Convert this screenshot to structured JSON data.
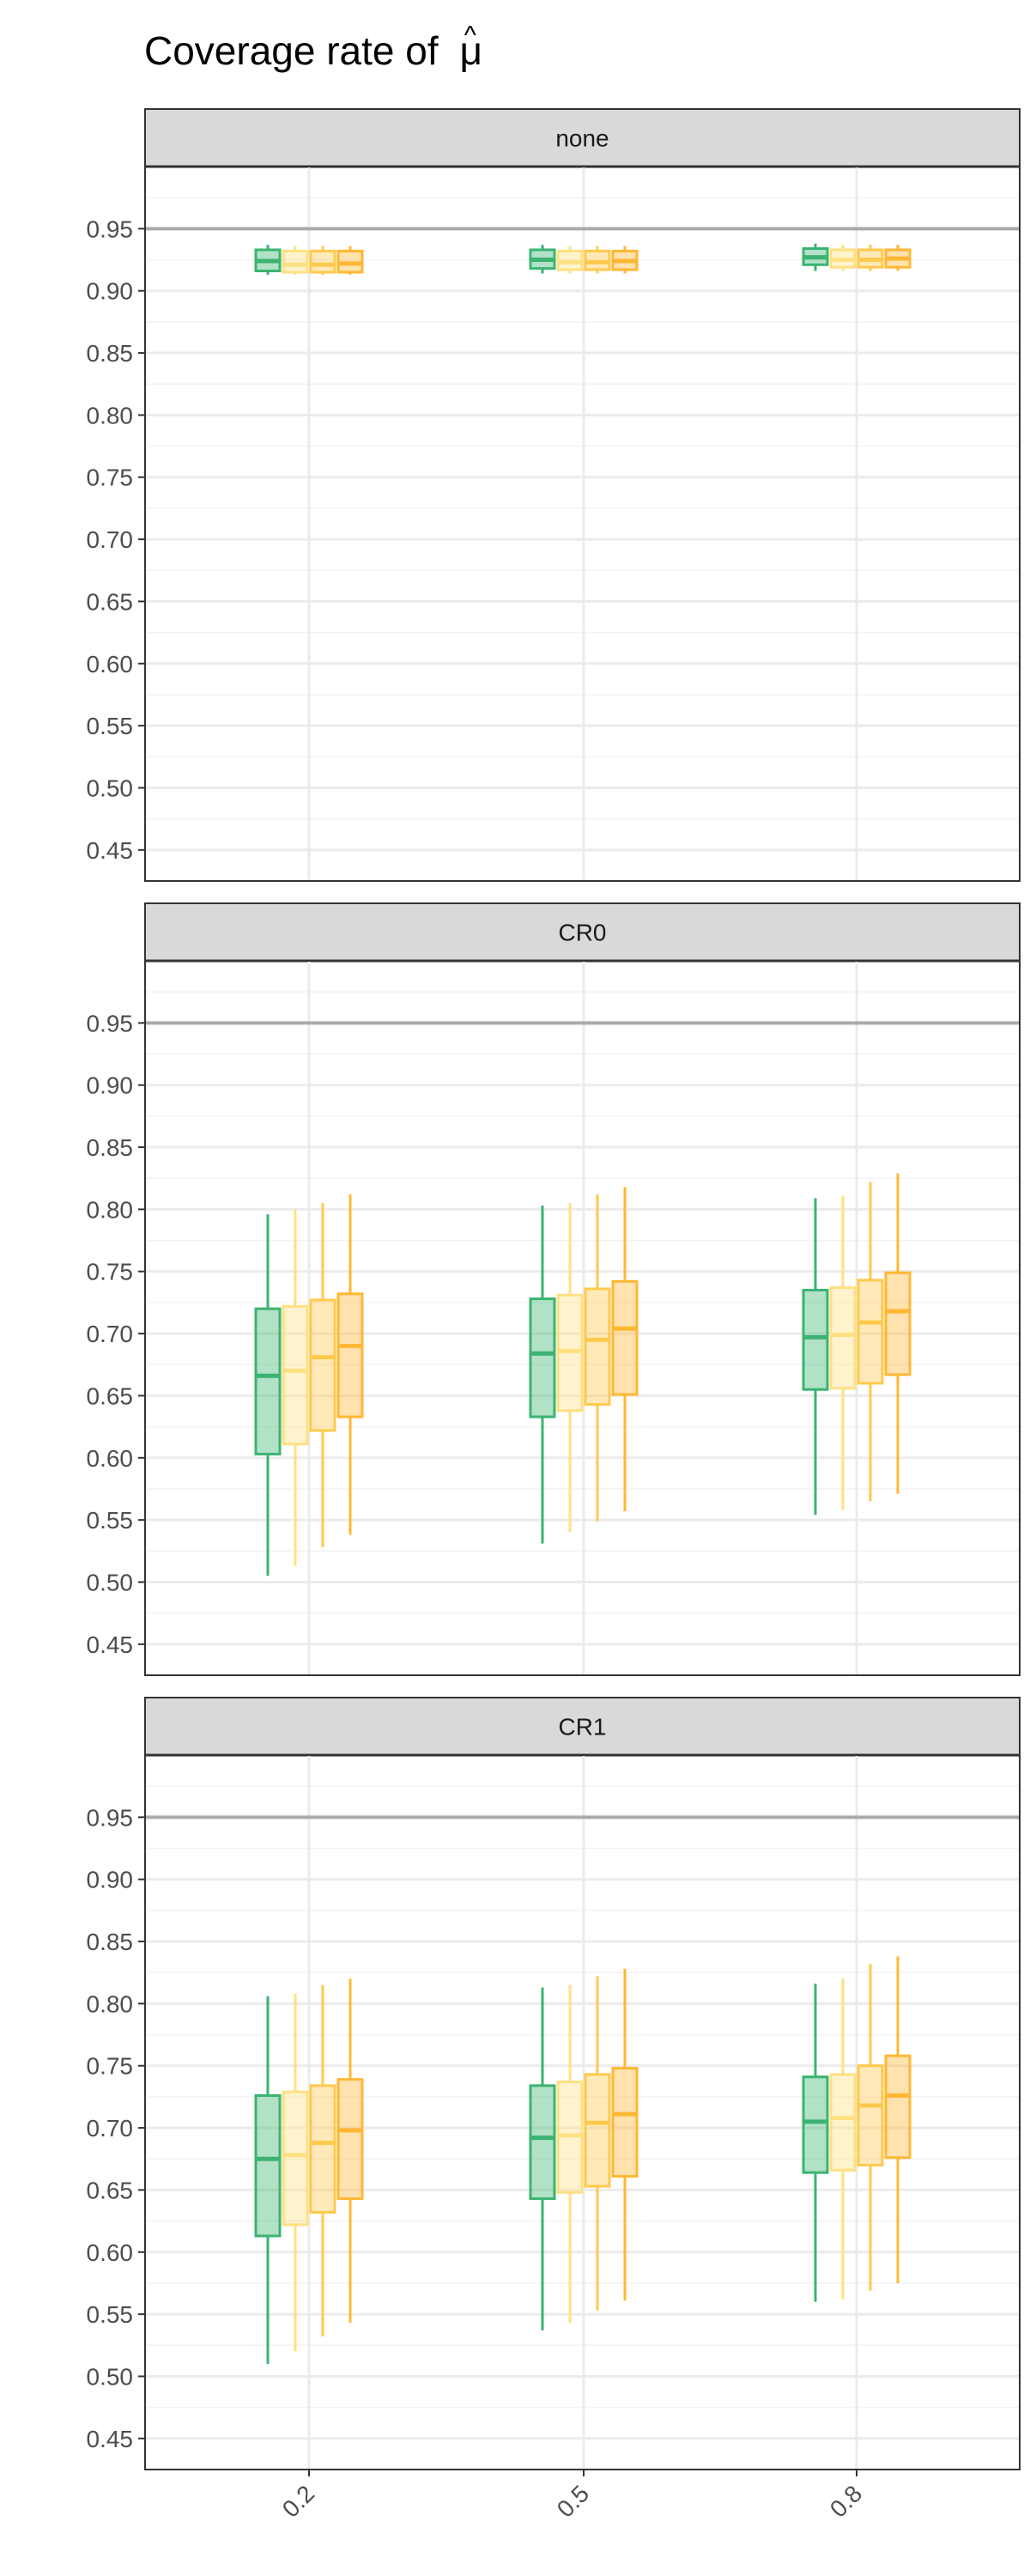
{
  "title": "Coverage rate of μ̂",
  "title_prefix": "Coverage rate of",
  "title_symbol": "μ",
  "colors": {
    "series": [
      "#3cb371",
      "#ffe082",
      "#ffc94d",
      "#ffb733"
    ],
    "reference_line": "#aaaaaa",
    "strip_fill": "#d9d9d9",
    "grid": "#ebebeb"
  },
  "chart_data": {
    "type": "box",
    "x_categories": [
      "0.2",
      "0.5",
      "0.8"
    ],
    "ylim": [
      0.425,
      1.0
    ],
    "y_ticks": [
      "0.45",
      "0.50",
      "0.55",
      "0.60",
      "0.65",
      "0.70",
      "0.75",
      "0.80",
      "0.85",
      "0.90",
      "0.95"
    ],
    "reference_line": 0.95,
    "grid": true,
    "legend": "none",
    "panels": [
      {
        "label": "none",
        "boxes": [
          [
            {
              "min": 0.913,
              "q1": 0.916,
              "median": 0.924,
              "q3": 0.933,
              "max": 0.937
            },
            {
              "min": 0.913,
              "q1": 0.915,
              "median": 0.921,
              "q3": 0.932,
              "max": 0.936
            },
            {
              "min": 0.913,
              "q1": 0.915,
              "median": 0.921,
              "q3": 0.932,
              "max": 0.936
            },
            {
              "min": 0.913,
              "q1": 0.915,
              "median": 0.922,
              "q3": 0.932,
              "max": 0.936
            }
          ],
          [
            {
              "min": 0.914,
              "q1": 0.918,
              "median": 0.925,
              "q3": 0.933,
              "max": 0.937
            },
            {
              "min": 0.914,
              "q1": 0.917,
              "median": 0.923,
              "q3": 0.932,
              "max": 0.936
            },
            {
              "min": 0.914,
              "q1": 0.917,
              "median": 0.923,
              "q3": 0.932,
              "max": 0.936
            },
            {
              "min": 0.914,
              "q1": 0.917,
              "median": 0.924,
              "q3": 0.932,
              "max": 0.936
            }
          ],
          [
            {
              "min": 0.916,
              "q1": 0.921,
              "median": 0.927,
              "q3": 0.934,
              "max": 0.938
            },
            {
              "min": 0.916,
              "q1": 0.919,
              "median": 0.925,
              "q3": 0.933,
              "max": 0.937
            },
            {
              "min": 0.916,
              "q1": 0.919,
              "median": 0.925,
              "q3": 0.933,
              "max": 0.937
            },
            {
              "min": 0.916,
              "q1": 0.919,
              "median": 0.926,
              "q3": 0.933,
              "max": 0.937
            }
          ]
        ]
      },
      {
        "label": "CR0",
        "boxes": [
          [
            {
              "min": 0.505,
              "q1": 0.603,
              "median": 0.666,
              "q3": 0.72,
              "max": 0.796
            },
            {
              "min": 0.513,
              "q1": 0.611,
              "median": 0.67,
              "q3": 0.722,
              "max": 0.8
            },
            {
              "min": 0.528,
              "q1": 0.622,
              "median": 0.681,
              "q3": 0.727,
              "max": 0.805
            },
            {
              "min": 0.538,
              "q1": 0.633,
              "median": 0.69,
              "q3": 0.732,
              "max": 0.812
            }
          ],
          [
            {
              "min": 0.531,
              "q1": 0.633,
              "median": 0.684,
              "q3": 0.728,
              "max": 0.803
            },
            {
              "min": 0.54,
              "q1": 0.638,
              "median": 0.686,
              "q3": 0.731,
              "max": 0.805
            },
            {
              "min": 0.549,
              "q1": 0.643,
              "median": 0.695,
              "q3": 0.736,
              "max": 0.812
            },
            {
              "min": 0.557,
              "q1": 0.651,
              "median": 0.704,
              "q3": 0.742,
              "max": 0.818
            }
          ],
          [
            {
              "min": 0.554,
              "q1": 0.655,
              "median": 0.697,
              "q3": 0.735,
              "max": 0.809
            },
            {
              "min": 0.558,
              "q1": 0.656,
              "median": 0.699,
              "q3": 0.737,
              "max": 0.811
            },
            {
              "min": 0.565,
              "q1": 0.66,
              "median": 0.709,
              "q3": 0.743,
              "max": 0.822
            },
            {
              "min": 0.571,
              "q1": 0.667,
              "median": 0.718,
              "q3": 0.749,
              "max": 0.829
            }
          ]
        ]
      },
      {
        "label": "CR1",
        "boxes": [
          [
            {
              "min": 0.51,
              "q1": 0.613,
              "median": 0.675,
              "q3": 0.726,
              "max": 0.806
            },
            {
              "min": 0.52,
              "q1": 0.622,
              "median": 0.678,
              "q3": 0.729,
              "max": 0.808
            },
            {
              "min": 0.532,
              "q1": 0.632,
              "median": 0.688,
              "q3": 0.734,
              "max": 0.815
            },
            {
              "min": 0.543,
              "q1": 0.643,
              "median": 0.698,
              "q3": 0.739,
              "max": 0.82
            }
          ],
          [
            {
              "min": 0.537,
              "q1": 0.643,
              "median": 0.692,
              "q3": 0.734,
              "max": 0.813
            },
            {
              "min": 0.543,
              "q1": 0.648,
              "median": 0.694,
              "q3": 0.737,
              "max": 0.815
            },
            {
              "min": 0.553,
              "q1": 0.653,
              "median": 0.704,
              "q3": 0.743,
              "max": 0.822
            },
            {
              "min": 0.561,
              "q1": 0.661,
              "median": 0.711,
              "q3": 0.748,
              "max": 0.828
            }
          ],
          [
            {
              "min": 0.56,
              "q1": 0.664,
              "median": 0.705,
              "q3": 0.741,
              "max": 0.816
            },
            {
              "min": 0.562,
              "q1": 0.666,
              "median": 0.708,
              "q3": 0.743,
              "max": 0.82
            },
            {
              "min": 0.569,
              "q1": 0.67,
              "median": 0.718,
              "q3": 0.75,
              "max": 0.832
            },
            {
              "min": 0.575,
              "q1": 0.676,
              "median": 0.726,
              "q3": 0.758,
              "max": 0.838
            }
          ]
        ]
      }
    ]
  }
}
